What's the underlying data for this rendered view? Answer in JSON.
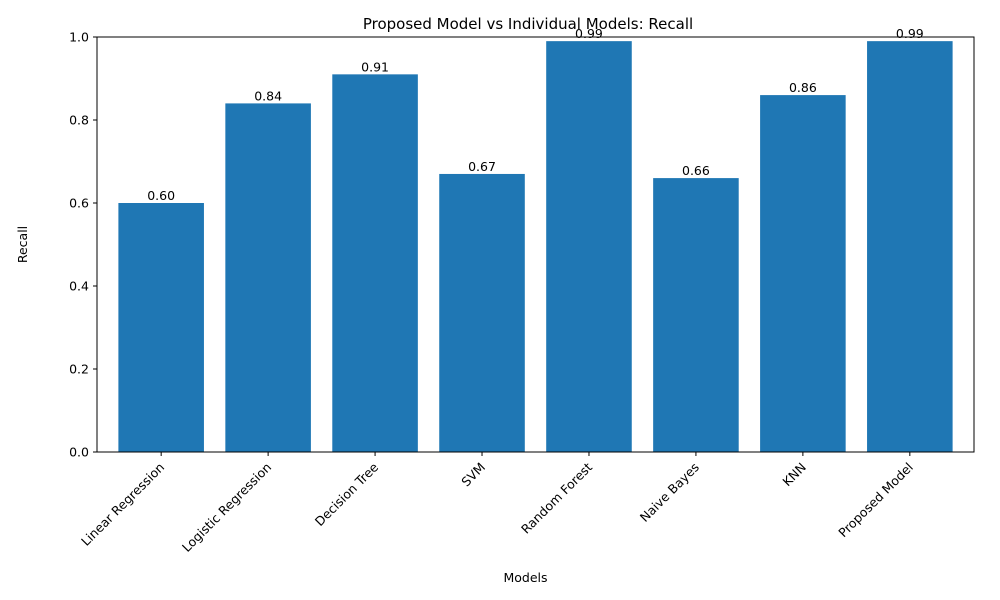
{
  "chart_data": {
    "type": "bar",
    "title": "Proposed Model vs Individual Models: Recall",
    "xlabel": "Models",
    "ylabel": "Recall",
    "categories": [
      "Linear Regression",
      "Logistic Regression",
      "Decision Tree",
      "SVM",
      "Random Forest",
      "Naive Bayes",
      "KNN",
      "Proposed Model"
    ],
    "values": [
      0.6,
      0.84,
      0.91,
      0.67,
      0.99,
      0.66,
      0.86,
      0.99
    ],
    "data_labels": [
      "0.60",
      "0.84",
      "0.91",
      "0.67",
      "0.99",
      "0.66",
      "0.86",
      "0.99"
    ],
    "ylim": [
      0,
      1.0
    ],
    "yticks": [
      0.0,
      0.2,
      0.4,
      0.6,
      0.8,
      1.0
    ],
    "ytick_labels": [
      "0.0",
      "0.2",
      "0.4",
      "0.6",
      "0.8",
      "1.0"
    ],
    "bar_color": "#1f77b4",
    "grid": false,
    "legend": "none"
  }
}
